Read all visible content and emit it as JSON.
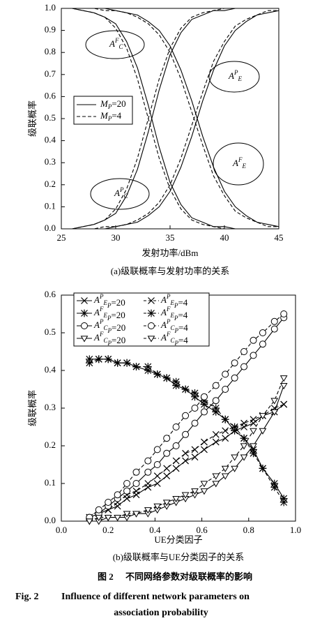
{
  "chart_data": [
    {
      "type": "line",
      "y_label": "级联概率",
      "x_label": "发射功率/dBm",
      "caption": "(a)级联概率与发射功率的关系",
      "x": [
        25,
        26,
        27,
        28,
        29,
        30,
        31,
        32,
        33,
        34,
        35,
        36,
        37,
        38,
        39,
        40,
        41,
        42,
        43,
        44,
        45
      ],
      "xlim": [
        25,
        45
      ],
      "xticks": [
        25,
        30,
        35,
        40,
        45
      ],
      "ylim": [
        0,
        1
      ],
      "yticks": [
        {
          "value": 0,
          "label": "0.0"
        },
        0.1,
        0.2,
        0.3,
        0.4,
        0.5,
        0.6,
        0.7,
        0.8,
        0.9,
        {
          "value": 1,
          "label": "1.0"
        }
      ],
      "legend": [
        {
          "name": [
            "M",
            {
              "sub": "P"
            },
            "=20"
          ],
          "style": "solid"
        },
        {
          "name": [
            "M",
            {
              "sub": "P"
            },
            "=4"
          ],
          "style": "dashed"
        }
      ],
      "annotations": [
        {
          "text": [
            "A",
            {
              "sup": "F"
            },
            {
              "sub": "C"
            }
          ]
        },
        {
          "text": [
            "A",
            {
              "sup": "P"
            },
            {
              "sub": "E"
            }
          ]
        },
        {
          "text": [
            "A",
            {
              "sup": "F"
            },
            {
              "sub": "E"
            }
          ]
        },
        {
          "text": [
            "A",
            {
              "sup": "P"
            },
            {
              "sub": "C"
            }
          ]
        }
      ],
      "series": [
        {
          "style": "solid",
          "color": "#000",
          "values": [
            1.0,
            1.0,
            0.99,
            0.98,
            0.96,
            0.93,
            0.85,
            0.73,
            0.56,
            0.37,
            0.21,
            0.11,
            0.05,
            0.03,
            0.01,
            0.01,
            0.0,
            0.0,
            0.0,
            0.0,
            0.0
          ]
        },
        {
          "style": "dashed",
          "color": "#000",
          "values": [
            1.0,
            1.0,
            0.99,
            0.98,
            0.96,
            0.91,
            0.82,
            0.68,
            0.5,
            0.32,
            0.18,
            0.09,
            0.04,
            0.02,
            0.01,
            0.0,
            0.0,
            0.0,
            0.0,
            0.0,
            0.0
          ]
        },
        {
          "style": "solid",
          "color": "#000",
          "values": [
            0.0,
            0.0,
            0.01,
            0.02,
            0.04,
            0.07,
            0.15,
            0.27,
            0.44,
            0.63,
            0.79,
            0.89,
            0.95,
            0.97,
            0.99,
            0.99,
            1.0,
            1.0,
            1.0,
            1.0,
            1.0
          ]
        },
        {
          "style": "dashed",
          "color": "#000",
          "values": [
            0.0,
            0.0,
            0.01,
            0.02,
            0.04,
            0.09,
            0.18,
            0.32,
            0.5,
            0.68,
            0.82,
            0.91,
            0.96,
            0.98,
            0.99,
            1.0,
            1.0,
            1.0,
            1.0,
            1.0,
            1.0
          ]
        },
        {
          "style": "solid",
          "color": "#000",
          "values": [
            0.0,
            0.0,
            0.0,
            0.0,
            0.0,
            0.01,
            0.02,
            0.03,
            0.06,
            0.1,
            0.17,
            0.28,
            0.42,
            0.58,
            0.72,
            0.83,
            0.9,
            0.94,
            0.97,
            0.98,
            0.99
          ]
        },
        {
          "style": "dashed",
          "color": "#000",
          "values": [
            0.0,
            0.0,
            0.0,
            0.0,
            0.01,
            0.01,
            0.02,
            0.04,
            0.07,
            0.12,
            0.2,
            0.32,
            0.47,
            0.62,
            0.76,
            0.85,
            0.92,
            0.95,
            0.97,
            0.99,
            0.99
          ]
        },
        {
          "style": "solid",
          "color": "#000",
          "values": [
            1.0,
            1.0,
            1.0,
            1.0,
            1.0,
            0.99,
            0.98,
            0.97,
            0.94,
            0.9,
            0.83,
            0.72,
            0.58,
            0.42,
            0.28,
            0.17,
            0.1,
            0.06,
            0.03,
            0.02,
            0.01
          ]
        },
        {
          "style": "dashed",
          "color": "#000",
          "values": [
            1.0,
            1.0,
            1.0,
            1.0,
            0.99,
            0.99,
            0.98,
            0.96,
            0.93,
            0.88,
            0.8,
            0.68,
            0.53,
            0.38,
            0.24,
            0.15,
            0.08,
            0.05,
            0.03,
            0.01,
            0.01
          ]
        }
      ]
    },
    {
      "type": "line",
      "y_label": "级联概率",
      "x_label": "UE分类因子",
      "caption": "(b)级联概率与UE分类因子的关系",
      "x": [
        0.12,
        0.16,
        0.2,
        0.24,
        0.28,
        0.32,
        0.37,
        0.41,
        0.45,
        0.49,
        0.53,
        0.57,
        0.61,
        0.66,
        0.7,
        0.74,
        0.78,
        0.82,
        0.86,
        0.91,
        0.95
      ],
      "xlim": [
        0,
        1
      ],
      "xticks": [
        {
          "value": 0,
          "label": "0.0"
        },
        0.2,
        0.4,
        0.6,
        0.8,
        {
          "value": 1,
          "label": "1.0"
        }
      ],
      "ylim": [
        0,
        0.6
      ],
      "yticks": [
        {
          "value": 0,
          "label": "0.0"
        },
        0.1,
        0.2,
        0.3,
        0.4,
        0.5,
        0.6
      ],
      "series": [
        {
          "name": [
            "A",
            {
              "sup": "P"
            },
            {
              "sub": "E"
            },
            ",M",
            {
              "sub": "P"
            },
            "=20"
          ],
          "style": "solid",
          "marker": "x",
          "color": "#000",
          "values": [
            0.01,
            0.02,
            0.03,
            0.04,
            0.06,
            0.07,
            0.09,
            0.1,
            0.12,
            0.14,
            0.16,
            0.17,
            0.19,
            0.21,
            0.22,
            0.24,
            0.25,
            0.26,
            0.28,
            0.29,
            0.31
          ]
        },
        {
          "name": [
            "A",
            {
              "sup": "P"
            },
            {
              "sub": "E"
            },
            ",M",
            {
              "sub": "P"
            },
            "=4"
          ],
          "style": "dashed",
          "marker": "x",
          "color": "#000",
          "values": [
            0.01,
            0.02,
            0.03,
            0.05,
            0.07,
            0.08,
            0.1,
            0.12,
            0.14,
            0.16,
            0.18,
            0.19,
            0.21,
            0.23,
            0.24,
            0.25,
            0.26,
            0.27,
            0.28,
            0.3,
            0.31
          ]
        },
        {
          "name": [
            "A",
            {
              "sup": "F"
            },
            {
              "sub": "E"
            },
            ",M",
            {
              "sub": "P"
            },
            "=20"
          ],
          "style": "solid",
          "marker": "asterisk",
          "color": "#000",
          "values": [
            0.43,
            0.43,
            0.43,
            0.42,
            0.42,
            0.41,
            0.4,
            0.39,
            0.38,
            0.36,
            0.35,
            0.33,
            0.31,
            0.29,
            0.27,
            0.24,
            0.22,
            0.19,
            0.14,
            0.1,
            0.06
          ]
        },
        {
          "name": [
            "A",
            {
              "sup": "F"
            },
            {
              "sub": "E"
            },
            ",M",
            {
              "sub": "P"
            },
            "=4"
          ],
          "style": "dashed",
          "marker": "asterisk",
          "color": "#000",
          "values": [
            0.42,
            0.43,
            0.43,
            0.42,
            0.42,
            0.41,
            0.41,
            0.39,
            0.38,
            0.37,
            0.35,
            0.34,
            0.32,
            0.3,
            0.27,
            0.25,
            0.22,
            0.18,
            0.14,
            0.09,
            0.05
          ]
        },
        {
          "name": [
            "A",
            {
              "sup": "P"
            },
            {
              "sub": "C"
            },
            ",M",
            {
              "sub": "P"
            },
            "=20"
          ],
          "style": "solid",
          "marker": "circle",
          "color": "#000",
          "values": [
            0.01,
            0.02,
            0.04,
            0.06,
            0.08,
            0.1,
            0.13,
            0.15,
            0.18,
            0.2,
            0.23,
            0.26,
            0.29,
            0.32,
            0.35,
            0.38,
            0.41,
            0.44,
            0.47,
            0.51,
            0.54
          ]
        },
        {
          "name": [
            "A",
            {
              "sup": "P"
            },
            {
              "sub": "C"
            },
            ",M",
            {
              "sub": "P"
            },
            "=4"
          ],
          "style": "dashed",
          "marker": "circle",
          "color": "#000",
          "values": [
            0.01,
            0.03,
            0.05,
            0.07,
            0.1,
            0.13,
            0.16,
            0.19,
            0.22,
            0.25,
            0.28,
            0.3,
            0.33,
            0.36,
            0.39,
            0.42,
            0.45,
            0.48,
            0.5,
            0.53,
            0.55
          ]
        },
        {
          "name": [
            "A",
            {
              "sup": "F"
            },
            {
              "sub": "C"
            },
            ",M",
            {
              "sub": "P"
            },
            "=20"
          ],
          "style": "solid",
          "marker": "triangle",
          "color": "#000",
          "values": [
            0.0,
            0.0,
            0.01,
            0.01,
            0.01,
            0.02,
            0.02,
            0.03,
            0.04,
            0.05,
            0.06,
            0.07,
            0.08,
            0.1,
            0.12,
            0.14,
            0.17,
            0.2,
            0.24,
            0.29,
            0.36
          ]
        },
        {
          "name": [
            "A",
            {
              "sup": "F"
            },
            {
              "sub": "C"
            },
            ",M",
            {
              "sub": "P"
            },
            "=4"
          ],
          "style": "dashed",
          "marker": "triangle",
          "color": "#000",
          "values": [
            0.0,
            0.01,
            0.01,
            0.01,
            0.02,
            0.02,
            0.03,
            0.04,
            0.05,
            0.06,
            0.07,
            0.08,
            0.1,
            0.12,
            0.14,
            0.17,
            0.2,
            0.24,
            0.28,
            0.32,
            0.38
          ]
        }
      ]
    }
  ],
  "figure_caption": {
    "cn_label": "图 2",
    "cn_title": "不同网络参数对级联概率的影响",
    "en_label": "Fig. 2",
    "en_title_1": "Influence of different network parameters on",
    "en_title_2": "association probability"
  }
}
